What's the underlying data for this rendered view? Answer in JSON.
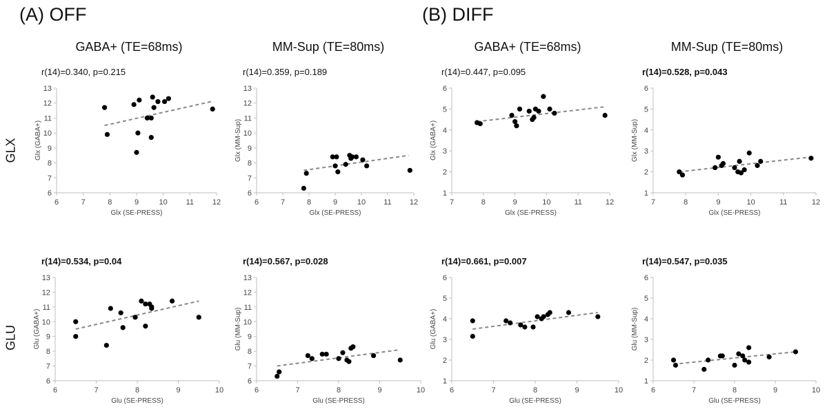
{
  "sections": [
    {
      "label": "(A) OFF"
    },
    {
      "label": "(B) DIFF"
    }
  ],
  "column_titles": [
    "GABA+ (TE=68ms)",
    "MM-Sup (TE=80ms)",
    "GABA+ (TE=68ms)",
    "MM-Sup (TE=80ms)"
  ],
  "row_labels": [
    "GLX",
    "GLU"
  ],
  "colors": {
    "points": "#000000",
    "trend": "#888888",
    "axis": "#bfbfbf"
  },
  "chart_data": [
    {
      "type": "scatter",
      "section": "(A) OFF",
      "title": "GABA+ (TE=68ms)",
      "stat": "r(14)=0.340, p=0.215",
      "stat_bold": false,
      "xlabel": "Glx (SE-PRESS)",
      "ylabel": "Glx (GABA+)",
      "xlim": [
        6,
        12
      ],
      "ylim": [
        6,
        13
      ],
      "xticks": [
        6,
        7,
        8,
        9,
        10,
        11,
        12
      ],
      "yticks": [
        6,
        7,
        8,
        9,
        10,
        11,
        12,
        13
      ],
      "trendline": [
        [
          7.8,
          10.5
        ],
        [
          11.8,
          12.1
        ]
      ],
      "points": [
        [
          7.8,
          11.7
        ],
        [
          7.9,
          9.9
        ],
        [
          8.9,
          11.9
        ],
        [
          9.0,
          8.7
        ],
        [
          9.05,
          10.0
        ],
        [
          9.1,
          12.2
        ],
        [
          9.4,
          11.0
        ],
        [
          9.55,
          11.0
        ],
        [
          9.55,
          9.7
        ],
        [
          9.6,
          12.4
        ],
        [
          9.65,
          11.7
        ],
        [
          9.8,
          12.1
        ],
        [
          10.05,
          12.1
        ],
        [
          10.2,
          12.3
        ],
        [
          11.85,
          11.6
        ]
      ]
    },
    {
      "type": "scatter",
      "section": "(A) OFF",
      "title": "MM-Sup (TE=80ms)",
      "stat": "r(14)=0.359, p=0.189",
      "stat_bold": false,
      "xlabel": "Glx (SE-PRESS)",
      "ylabel": "Glx (MM-Sup)",
      "xlim": [
        6,
        12
      ],
      "ylim": [
        6,
        13
      ],
      "xticks": [
        6,
        7,
        8,
        9,
        10,
        11,
        12
      ],
      "yticks": [
        6,
        7,
        8,
        9,
        10,
        11,
        12,
        13
      ],
      "trendline": [
        [
          7.8,
          7.5
        ],
        [
          11.8,
          8.5
        ]
      ],
      "points": [
        [
          7.8,
          6.3
        ],
        [
          7.9,
          7.3
        ],
        [
          8.9,
          8.4
        ],
        [
          9.0,
          7.8
        ],
        [
          9.05,
          8.4
        ],
        [
          9.1,
          7.4
        ],
        [
          9.4,
          7.9
        ],
        [
          9.55,
          8.5
        ],
        [
          9.6,
          8.3
        ],
        [
          9.65,
          8.4
        ],
        [
          9.8,
          8.4
        ],
        [
          10.05,
          8.2
        ],
        [
          10.2,
          7.8
        ],
        [
          11.85,
          7.5
        ]
      ]
    },
    {
      "type": "scatter",
      "section": "(B) DIFF",
      "title": "GABA+ (TE=68ms)",
      "stat": "r(14)=0.447, p=0.095",
      "stat_bold": false,
      "xlabel": "Glx (SE-PRESS)",
      "ylabel": "Glx (GABA+)",
      "xlim": [
        7,
        12
      ],
      "ylim": [
        1,
        6
      ],
      "xticks": [
        7,
        8,
        9,
        10,
        11,
        12
      ],
      "yticks": [
        1,
        2,
        3,
        4,
        5,
        6
      ],
      "trendline": [
        [
          7.8,
          4.4
        ],
        [
          11.8,
          5.1
        ]
      ],
      "points": [
        [
          7.8,
          4.35
        ],
        [
          7.9,
          4.3
        ],
        [
          8.9,
          4.7
        ],
        [
          9.0,
          4.4
        ],
        [
          9.05,
          4.2
        ],
        [
          9.15,
          5.0
        ],
        [
          9.45,
          4.9
        ],
        [
          9.55,
          4.5
        ],
        [
          9.6,
          4.6
        ],
        [
          9.65,
          5.0
        ],
        [
          9.75,
          4.9
        ],
        [
          9.9,
          5.6
        ],
        [
          10.1,
          5.0
        ],
        [
          10.25,
          4.8
        ],
        [
          11.85,
          4.7
        ]
      ]
    },
    {
      "type": "scatter",
      "section": "(B) DIFF",
      "title": "MM-Sup (TE=80ms)",
      "stat": "r(14)=0.528, p=0.043",
      "stat_bold": true,
      "xlabel": "Glx (SE-PRESS)",
      "ylabel": "Glx (MM-Sup)",
      "xlim": [
        7,
        12
      ],
      "ylim": [
        1,
        6
      ],
      "xticks": [
        7,
        8,
        9,
        10,
        11,
        12
      ],
      "yticks": [
        1,
        2,
        3,
        4,
        5,
        6
      ],
      "trendline": [
        [
          7.8,
          2.0
        ],
        [
          11.8,
          2.7
        ]
      ],
      "points": [
        [
          7.8,
          2.0
        ],
        [
          7.9,
          1.85
        ],
        [
          8.9,
          2.2
        ],
        [
          9.0,
          2.7
        ],
        [
          9.1,
          2.3
        ],
        [
          9.15,
          2.4
        ],
        [
          9.5,
          2.2
        ],
        [
          9.6,
          2.0
        ],
        [
          9.65,
          2.5
        ],
        [
          9.7,
          1.95
        ],
        [
          9.8,
          2.1
        ],
        [
          9.95,
          2.9
        ],
        [
          10.2,
          2.3
        ],
        [
          10.3,
          2.5
        ],
        [
          11.85,
          2.65
        ]
      ]
    },
    {
      "type": "scatter",
      "section": "(A) OFF",
      "title": "",
      "stat": "r(14)=0.534, p=0.04",
      "stat_bold": true,
      "xlabel": "Glu (SE-PRESS)",
      "ylabel": "Glu (GABA+)",
      "xlim": [
        6,
        10
      ],
      "ylim": [
        6,
        13
      ],
      "xticks": [
        6,
        7,
        8,
        9,
        10
      ],
      "yticks": [
        6,
        7,
        8,
        9,
        10,
        11,
        12,
        13
      ],
      "trendline": [
        [
          6.5,
          9.5
        ],
        [
          9.5,
          11.4
        ]
      ],
      "points": [
        [
          6.5,
          10.0
        ],
        [
          6.5,
          9.0
        ],
        [
          7.25,
          8.4
        ],
        [
          7.35,
          10.9
        ],
        [
          7.6,
          10.6
        ],
        [
          7.65,
          9.6
        ],
        [
          7.95,
          10.3
        ],
        [
          8.1,
          11.4
        ],
        [
          8.2,
          11.2
        ],
        [
          8.2,
          9.7
        ],
        [
          8.3,
          11.2
        ],
        [
          8.35,
          11.0
        ],
        [
          8.35,
          10.9
        ],
        [
          8.85,
          11.4
        ],
        [
          9.5,
          10.3
        ]
      ]
    },
    {
      "type": "scatter",
      "section": "(A) OFF",
      "title": "",
      "stat": "r(14)=0.567, p=0.028",
      "stat_bold": true,
      "xlabel": "Glu (SE-PRESS)",
      "ylabel": "Glu (MM-Sup)",
      "xlim": [
        6,
        10
      ],
      "ylim": [
        6,
        13
      ],
      "xticks": [
        6,
        7,
        8,
        9,
        10
      ],
      "yticks": [
        6,
        7,
        8,
        9,
        10,
        11,
        12,
        13
      ],
      "trendline": [
        [
          6.5,
          7.0
        ],
        [
          9.5,
          8.1
        ]
      ],
      "points": [
        [
          6.5,
          6.3
        ],
        [
          6.55,
          6.6
        ],
        [
          7.25,
          7.7
        ],
        [
          7.35,
          7.5
        ],
        [
          7.6,
          7.8
        ],
        [
          7.7,
          7.8
        ],
        [
          8.0,
          7.5
        ],
        [
          8.1,
          7.9
        ],
        [
          8.2,
          7.4
        ],
        [
          8.25,
          7.3
        ],
        [
          8.3,
          8.2
        ],
        [
          8.35,
          8.3
        ],
        [
          8.85,
          7.7
        ],
        [
          9.5,
          7.4
        ]
      ]
    },
    {
      "type": "scatter",
      "section": "(B) DIFF",
      "title": "",
      "stat": "r(14)=0.661, p=0.007",
      "stat_bold": true,
      "xlabel": "Glu (SE-PRESS)",
      "ylabel": "Glu (GABA+)",
      "xlim": [
        6,
        10
      ],
      "ylim": [
        1,
        6
      ],
      "xticks": [
        6,
        7,
        8,
        9,
        10
      ],
      "yticks": [
        1,
        2,
        3,
        4,
        5,
        6
      ],
      "trendline": [
        [
          6.5,
          3.5
        ],
        [
          9.5,
          4.3
        ]
      ],
      "points": [
        [
          6.5,
          3.9
        ],
        [
          6.5,
          3.15
        ],
        [
          7.3,
          3.9
        ],
        [
          7.4,
          3.8
        ],
        [
          7.65,
          3.7
        ],
        [
          7.75,
          3.6
        ],
        [
          7.95,
          3.6
        ],
        [
          8.05,
          4.1
        ],
        [
          8.15,
          4.0
        ],
        [
          8.2,
          4.1
        ],
        [
          8.3,
          4.2
        ],
        [
          8.35,
          4.3
        ],
        [
          8.8,
          4.3
        ],
        [
          9.5,
          4.1
        ]
      ]
    },
    {
      "type": "scatter",
      "section": "(B) DIFF",
      "title": "",
      "stat": "r(14)=0.547, p=0.035",
      "stat_bold": true,
      "xlabel": "Glu (SE-PRESS)",
      "ylabel": "Glu (MM-Sup)",
      "xlim": [
        6,
        10
      ],
      "ylim": [
        1,
        6
      ],
      "xticks": [
        6,
        7,
        8,
        9,
        10
      ],
      "yticks": [
        1,
        2,
        3,
        4,
        5,
        6
      ],
      "trendline": [
        [
          6.5,
          1.8
        ],
        [
          9.5,
          2.4
        ]
      ],
      "points": [
        [
          6.5,
          2.0
        ],
        [
          6.55,
          1.75
        ],
        [
          7.25,
          1.55
        ],
        [
          7.35,
          2.0
        ],
        [
          7.65,
          2.2
        ],
        [
          7.7,
          2.2
        ],
        [
          8.0,
          1.75
        ],
        [
          8.1,
          2.3
        ],
        [
          8.2,
          2.2
        ],
        [
          8.25,
          2.0
        ],
        [
          8.35,
          2.6
        ],
        [
          8.35,
          1.9
        ],
        [
          8.85,
          2.15
        ],
        [
          9.5,
          2.4
        ]
      ]
    }
  ]
}
